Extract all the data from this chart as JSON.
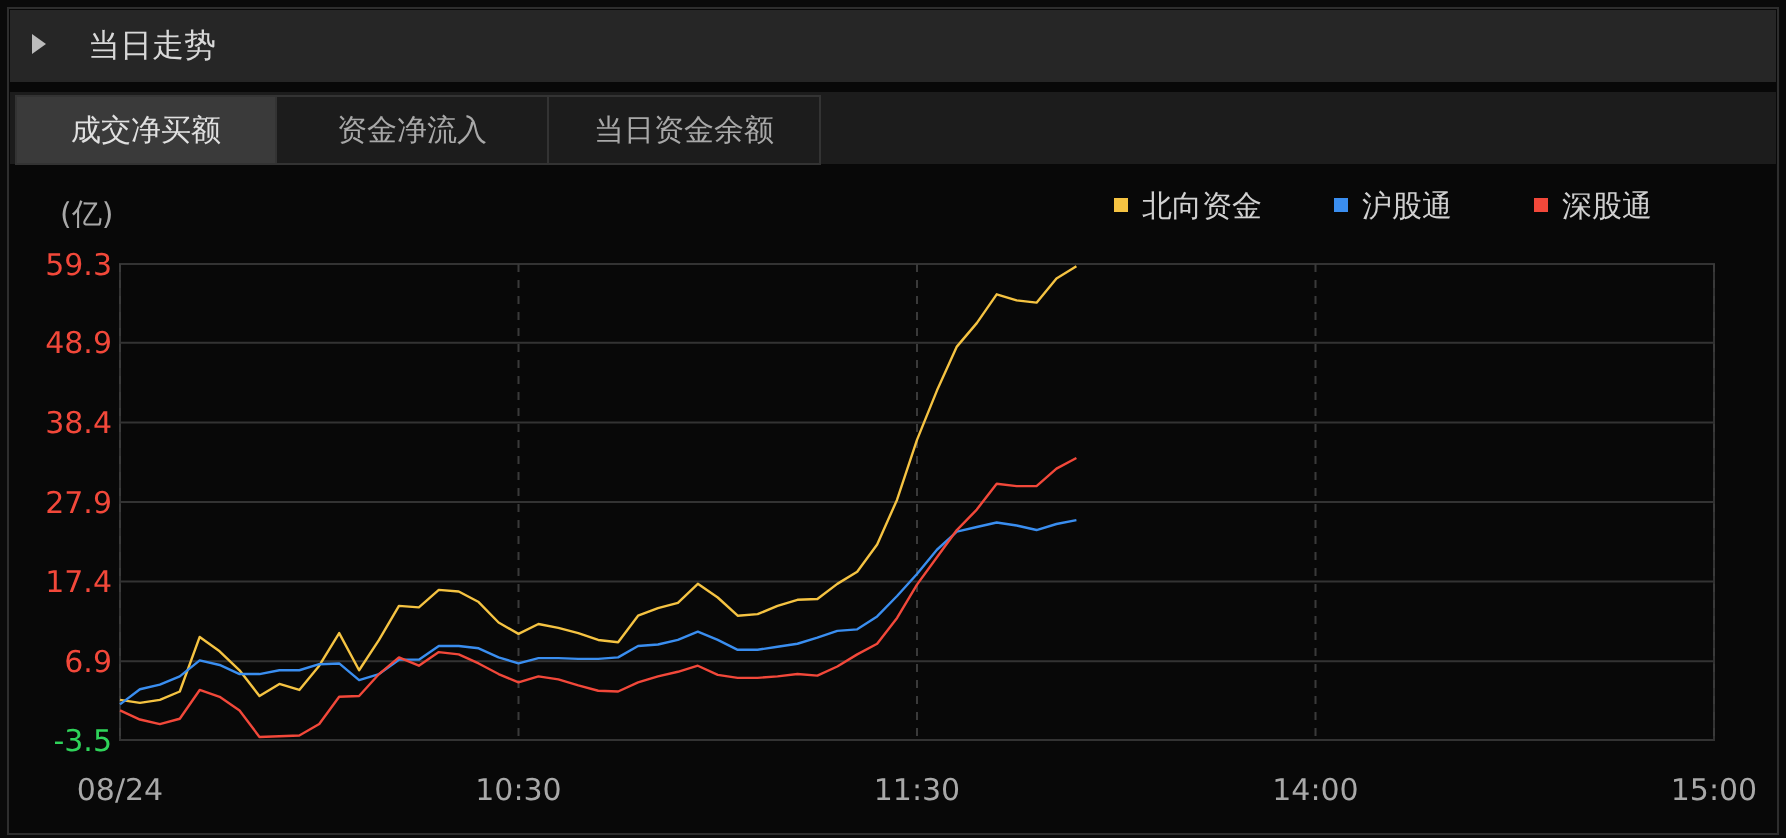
{
  "chart_data": {
    "type": "line",
    "title": "当日走势",
    "ylabel": "(亿)",
    "annotations": [
      "成交净买额",
      "资金净流入",
      "当日资金余额"
    ],
    "categories": [
      "08/24",
      null,
      null,
      null,
      null,
      null,
      null,
      null,
      null,
      null,
      null,
      null,
      null,
      null,
      null,
      null,
      null,
      null,
      null,
      null,
      "10:30",
      null,
      null,
      null,
      null,
      null,
      null,
      null,
      null,
      null,
      null,
      null,
      null,
      null,
      null,
      null,
      null,
      null,
      null,
      null,
      "11:30",
      null,
      null,
      null,
      null,
      null,
      null,
      null,
      null,
      null,
      null,
      null,
      null,
      null,
      null,
      null,
      null,
      null,
      null,
      null,
      "14:00",
      null,
      null,
      null,
      null,
      null,
      null,
      null,
      null,
      null,
      null,
      null,
      null,
      null,
      null,
      null,
      null,
      null,
      null,
      null,
      "15:00"
    ],
    "ylim": [
      -3.5,
      59.3
    ],
    "yticks": [
      -3.5,
      6.9,
      17.4,
      27.9,
      38.4,
      48.9,
      59.3
    ],
    "grid": true,
    "legend": "top right",
    "marker": "none",
    "line_style": "solid",
    "series": [
      {
        "name": "北向资金",
        "color": "#f5c342",
        "values": [
          1.8,
          1.4,
          1.8,
          2.9,
          10.1,
          8.2,
          5.7,
          2.3,
          3.9,
          3.1,
          6.3,
          10.6,
          5.7,
          9.7,
          14.2,
          14.0,
          16.3,
          16.1,
          14.7,
          12.0,
          10.5,
          11.8,
          11.3,
          10.6,
          9.7,
          9.4,
          12.9,
          13.9,
          14.6,
          17.1,
          15.3,
          12.9,
          13.1,
          14.2,
          15.0,
          15.1,
          17.1,
          18.7,
          22.3,
          28.2,
          36.1,
          42.6,
          48.4,
          51.5,
          55.3,
          54.5,
          54.2,
          57.4,
          59.0,
          null,
          null,
          null,
          null,
          null,
          null,
          null,
          null,
          null,
          null,
          null,
          null,
          null,
          null,
          null,
          null,
          null,
          null,
          null,
          null,
          null,
          null,
          null,
          null,
          null,
          null,
          null,
          null,
          null,
          null,
          null,
          null
        ]
      },
      {
        "name": "沪股通",
        "color": "#3a8ef0",
        "values": [
          1.2,
          3.2,
          3.8,
          4.9,
          7.0,
          6.4,
          5.2,
          5.2,
          5.7,
          5.7,
          6.5,
          6.6,
          4.4,
          5.2,
          7.1,
          7.1,
          8.9,
          8.9,
          8.6,
          7.4,
          6.6,
          7.3,
          7.3,
          7.2,
          7.2,
          7.4,
          8.9,
          9.1,
          9.7,
          10.8,
          9.7,
          8.4,
          8.4,
          8.8,
          9.2,
          10.0,
          10.9,
          11.1,
          12.8,
          15.5,
          18.4,
          21.6,
          24.0,
          24.6,
          25.2,
          24.8,
          24.2,
          25.0,
          25.5,
          null,
          null,
          null,
          null,
          null,
          null,
          null,
          null,
          null,
          null,
          null,
          null,
          null,
          null,
          null,
          null,
          null,
          null,
          null,
          null,
          null,
          null,
          null,
          null,
          null,
          null,
          null,
          null,
          null,
          null,
          null,
          null
        ]
      },
      {
        "name": "深股通",
        "color": "#f2483a",
        "values": [
          0.4,
          -0.8,
          -1.4,
          -0.7,
          3.1,
          2.2,
          0.4,
          -3.1,
          -3.0,
          -2.9,
          -1.4,
          2.2,
          2.3,
          5.2,
          7.4,
          6.3,
          8.1,
          7.8,
          6.6,
          5.2,
          4.1,
          4.9,
          4.5,
          3.7,
          3.0,
          2.9,
          4.1,
          4.9,
          5.5,
          6.3,
          5.1,
          4.7,
          4.7,
          4.9,
          5.2,
          5.0,
          6.2,
          7.8,
          9.2,
          12.6,
          17.0,
          20.6,
          24.2,
          26.9,
          30.3,
          30.0,
          30.0,
          32.3,
          33.7,
          null,
          null,
          null,
          null,
          null,
          null,
          null,
          null,
          null,
          null,
          null,
          null,
          null,
          null,
          null,
          null,
          null,
          null,
          null,
          null,
          null,
          null,
          null,
          null,
          null,
          null,
          null,
          null,
          null,
          null,
          null,
          null
        ]
      }
    ]
  }
}
